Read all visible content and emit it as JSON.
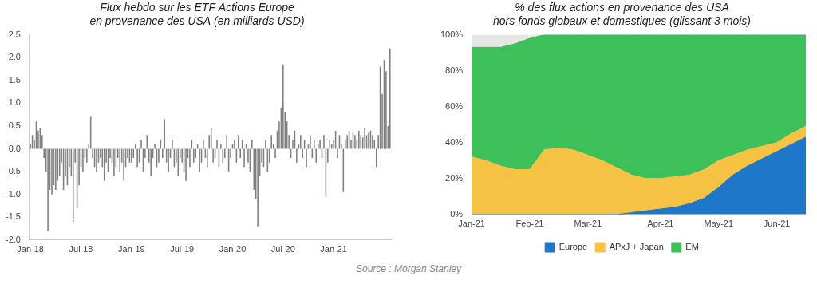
{
  "chart_data": [
    {
      "type": "bar",
      "title": [
        "Flux hebdo sur les ETF Actions Europe",
        "en provenance des USA (en milliards USD)"
      ],
      "categories": [
        "Jan-18",
        null,
        null,
        null,
        null,
        null,
        null,
        null,
        null,
        null,
        null,
        null,
        null,
        null,
        null,
        null,
        null,
        null,
        null,
        null,
        null,
        null,
        null,
        null,
        null,
        null,
        "Jul-18",
        null,
        null,
        null,
        null,
        null,
        null,
        null,
        null,
        null,
        null,
        null,
        null,
        null,
        null,
        null,
        null,
        null,
        null,
        null,
        null,
        null,
        null,
        null,
        null,
        null,
        "Jan-19",
        null,
        null,
        null,
        null,
        null,
        null,
        null,
        null,
        null,
        null,
        null,
        null,
        null,
        null,
        null,
        null,
        null,
        null,
        null,
        null,
        null,
        null,
        null,
        null,
        null,
        "Jul-19",
        null,
        null,
        null,
        null,
        null,
        null,
        null,
        null,
        null,
        null,
        null,
        null,
        null,
        null,
        null,
        null,
        null,
        null,
        null,
        null,
        null,
        null,
        null,
        null,
        null,
        "Jan-20",
        null,
        null,
        null,
        null,
        null,
        null,
        null,
        null,
        null,
        null,
        null,
        null,
        null,
        null,
        null,
        null,
        null,
        null,
        null,
        null,
        null,
        null,
        null,
        null,
        null,
        "Jul-20",
        null,
        null,
        null,
        null,
        null,
        null,
        null,
        null,
        null,
        null,
        null,
        null,
        null,
        null,
        null,
        null,
        null,
        null,
        null,
        null,
        null,
        null,
        null,
        null,
        null,
        "Jan-21",
        null,
        null,
        null,
        null,
        null,
        null,
        null,
        null,
        null,
        null,
        null,
        null,
        null,
        null,
        null,
        null,
        null,
        null,
        null,
        null,
        null,
        null,
        null,
        null,
        null,
        null,
        null,
        null,
        null
      ],
      "values": [
        0.1,
        0.3,
        0.2,
        0.6,
        0.4,
        0.45,
        0.3,
        -0.2,
        -0.5,
        -1.8,
        -0.9,
        -1.0,
        -0.8,
        -0.9,
        -0.7,
        -0.6,
        -0.3,
        -0.9,
        -0.6,
        -0.8,
        -0.4,
        -0.6,
        -1.6,
        -0.3,
        -1.3,
        -0.8,
        -0.4,
        -0.5,
        -0.2,
        -0.3,
        0.1,
        0.7,
        -0.2,
        -0.4,
        -0.5,
        -0.3,
        -0.2,
        -0.4,
        -0.7,
        -0.3,
        -0.5,
        -0.2,
        -0.3,
        -0.6,
        -0.4,
        -0.2,
        -0.5,
        -0.3,
        -0.7,
        -0.4,
        -0.2,
        -0.3,
        -0.3,
        -0.2,
        0.1,
        -0.4,
        -0.3,
        0.2,
        -0.5,
        -0.2,
        0.3,
        -0.3,
        -0.6,
        -0.2,
        0.1,
        -0.4,
        -0.3,
        0.2,
        -0.2,
        0.65,
        -0.3,
        -0.5,
        -0.2,
        0.2,
        -0.4,
        -0.3,
        -0.6,
        -0.2,
        -0.3,
        -0.5,
        -0.7,
        -0.2,
        -0.4,
        0.2,
        -0.3,
        -0.2,
        0.1,
        -0.5,
        -0.3,
        0.2,
        -0.2,
        -0.4,
        0.3,
        0.45,
        -0.3,
        -0.2,
        0.2,
        -0.4,
        0.1,
        -0.3,
        -0.2,
        0.3,
        -0.5,
        -0.2,
        0.1,
        0.2,
        -0.3,
        0.3,
        -0.2,
        0.2,
        -0.4,
        0.1,
        -0.3,
        -0.5,
        0.2,
        -0.9,
        -1.1,
        -1.7,
        -0.6,
        -0.3,
        -0.4,
        0.2,
        -0.5,
        -0.3,
        0.3,
        0.1,
        -0.2,
        0.4,
        0.6,
        0.9,
        1.85,
        0.8,
        0.6,
        0.3,
        -0.2,
        0.2,
        0.4,
        -0.3,
        0.1,
        0.3,
        -0.2,
        0.2,
        -0.4,
        0.1,
        0.3,
        -0.2,
        0.2,
        -0.3,
        0.1,
        0.2,
        -0.2,
        0.3,
        -1.05,
        -0.3,
        0.2,
        0.1,
        0.2,
        0.4,
        -0.2,
        0.3,
        0.1,
        -0.95,
        0.2,
        0.3,
        0.4,
        0.2,
        0.35,
        0.3,
        0.2,
        0.4,
        0.3,
        0.25,
        0.45,
        0.3,
        0.35,
        0.4,
        0.3,
        0.2,
        -0.4,
        0.3,
        1.8,
        1.2,
        1.95,
        1.7,
        0.5,
        2.2
      ],
      "color": "#7f7f7f",
      "ylim": [
        -2,
        2.5
      ],
      "yticks": [
        {
          "value": -2,
          "label": "-2.0"
        },
        -1.5,
        {
          "value": -1,
          "label": "-1.0"
        },
        -0.5,
        {
          "value": 0,
          "label": "0.0"
        },
        0.5,
        {
          "value": 1,
          "label": "1.0"
        },
        1.5,
        {
          "value": 2,
          "label": "2.0"
        },
        2.5
      ],
      "grid": false
    },
    {
      "type": "area",
      "title": [
        "% des flux actions en provenance des USA",
        "hors fonds globaux et domestiques (glissant 3 mois)"
      ],
      "categories": [
        "Jan-21",
        null,
        null,
        null,
        "Feb-21",
        null,
        null,
        null,
        "Mar-21",
        null,
        null,
        null,
        null,
        "Apr-21",
        null,
        null,
        null,
        "May-21",
        null,
        null,
        null,
        "Jun-21",
        null,
        null
      ],
      "series": [
        {
          "name": "Europe",
          "color": "#1f77c9",
          "values": [
            0,
            0,
            0,
            0,
            0,
            0,
            0,
            0,
            0,
            0,
            0,
            1,
            2,
            3,
            4,
            6,
            9,
            15,
            22,
            27,
            31,
            35,
            39,
            43
          ]
        },
        {
          "name": "APxJ + Japan",
          "color": "#f5c243",
          "values": [
            32,
            30,
            27,
            25,
            25,
            36,
            37,
            36,
            33,
            30,
            26,
            21,
            18,
            17,
            17,
            16,
            16,
            15,
            11,
            9,
            7,
            5,
            6,
            6
          ]
        },
        {
          "name": "EM",
          "color": "#3dbf5a",
          "values": [
            61,
            63,
            66,
            70,
            73,
            64,
            63,
            64,
            67,
            70,
            74,
            78,
            80,
            80,
            79,
            78,
            75,
            70,
            67,
            64,
            62,
            60,
            55,
            51
          ]
        }
      ],
      "stacked": true,
      "ylim": [
        0,
        100
      ],
      "yticks": [
        {
          "value": 0,
          "label": "0%"
        },
        {
          "value": 20,
          "label": "20%"
        },
        {
          "value": 40,
          "label": "40%"
        },
        {
          "value": 60,
          "label": "60%"
        },
        {
          "value": 80,
          "label": "80%"
        },
        {
          "value": 100,
          "label": "100%"
        }
      ],
      "grid": true,
      "legend": "bottom"
    }
  ],
  "source": "Source : Morgan Stanley"
}
